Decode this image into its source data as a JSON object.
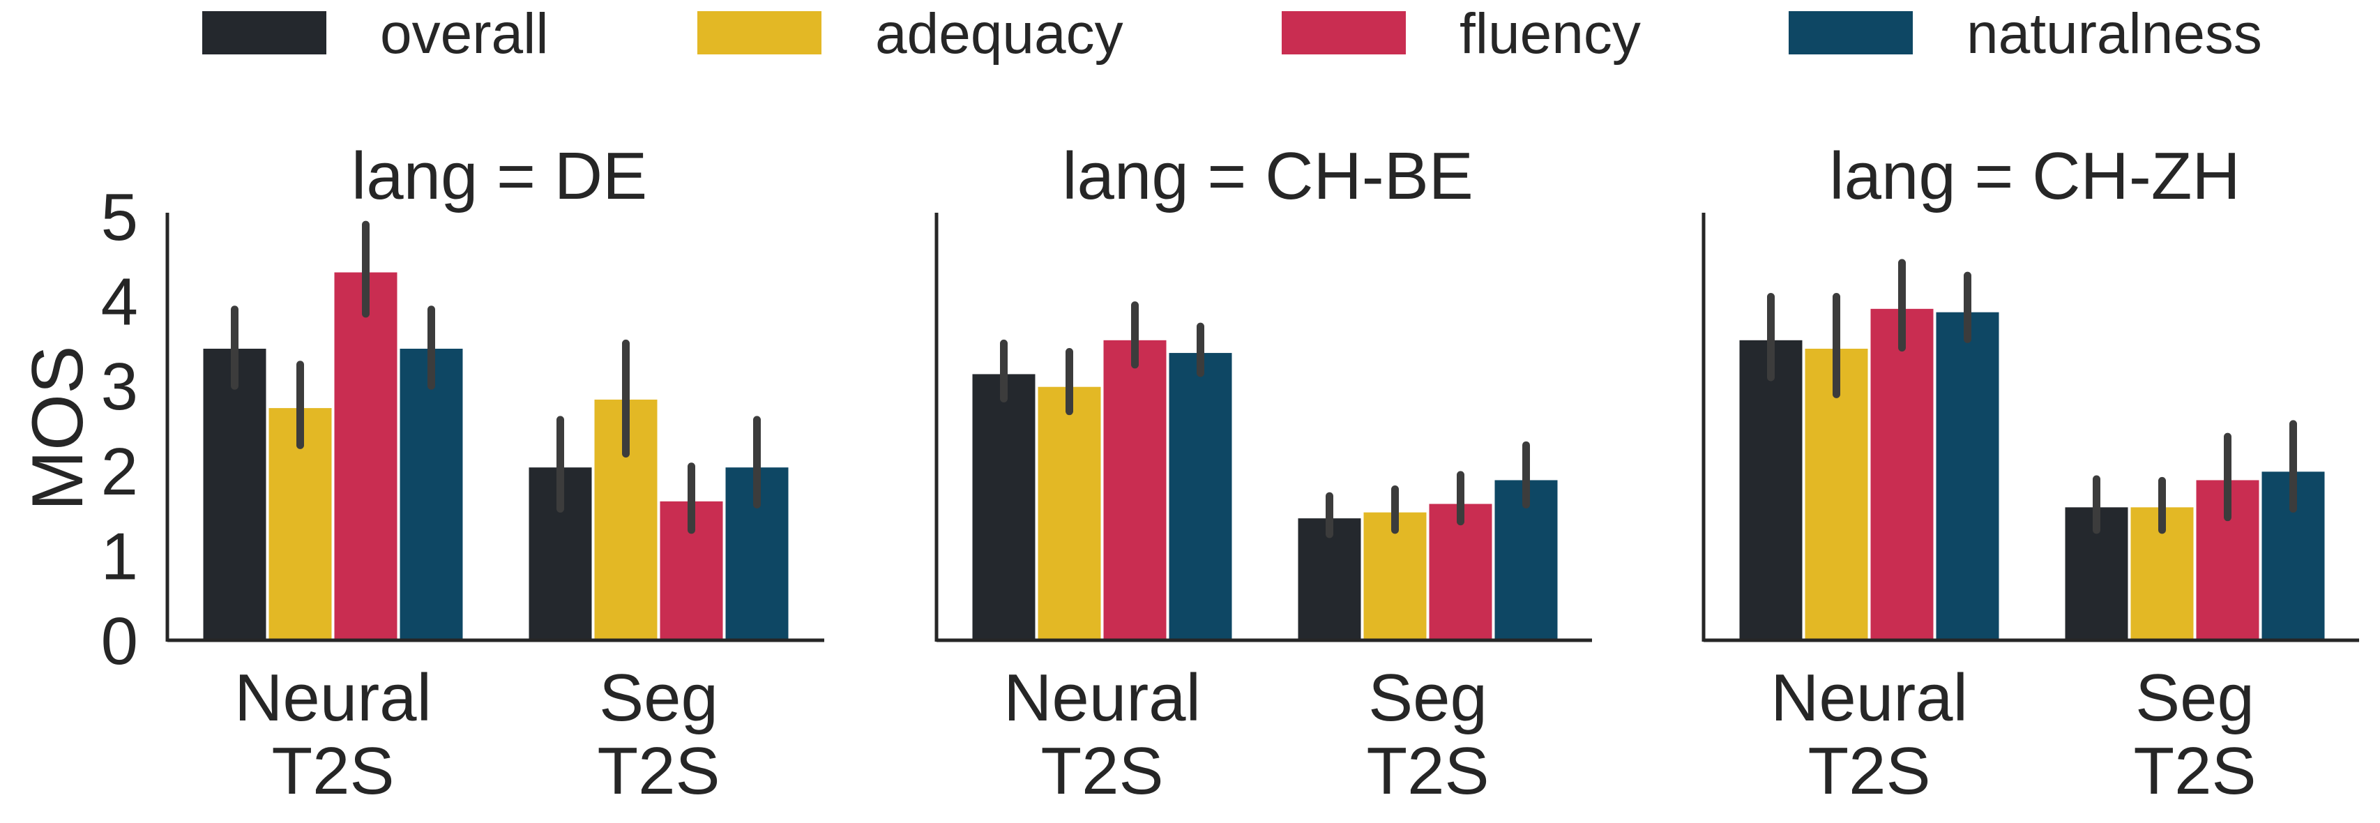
{
  "chart_data": {
    "type": "bar",
    "ylabel": "MOS",
    "ylim": [
      0,
      5
    ],
    "yticks": [
      0,
      1,
      2,
      3,
      4,
      5
    ],
    "categories": [
      "Neural\nT2S",
      "Seg\nT2S"
    ],
    "legend": {
      "placement": "top",
      "entries": [
        {
          "name": "overall",
          "color": "#24282d"
        },
        {
          "name": "adequacy",
          "color": "#e3b825"
        },
        {
          "name": "fluency",
          "color": "#c92d51"
        },
        {
          "name": "naturalness",
          "color": "#0e4764"
        }
      ]
    },
    "panels": [
      {
        "title": "lang = DE",
        "series": [
          {
            "name": "overall",
            "values": [
              3.45,
              2.05
            ],
            "err_low": [
              3.0,
              1.55
            ],
            "err_high": [
              3.9,
              2.6
            ]
          },
          {
            "name": "adequacy",
            "values": [
              2.75,
              2.85
            ],
            "err_low": [
              2.3,
              2.2
            ],
            "err_high": [
              3.25,
              3.5
            ]
          },
          {
            "name": "fluency",
            "values": [
              4.35,
              1.65
            ],
            "err_low": [
              3.85,
              1.3
            ],
            "err_high": [
              4.9,
              2.05
            ]
          },
          {
            "name": "naturalness",
            "values": [
              3.45,
              2.05
            ],
            "err_low": [
              3.0,
              1.6
            ],
            "err_high": [
              3.9,
              2.6
            ]
          }
        ]
      },
      {
        "title": "lang = CH-BE",
        "series": [
          {
            "name": "overall",
            "values": [
              3.15,
              1.45
            ],
            "err_low": [
              2.85,
              1.25
            ],
            "err_high": [
              3.5,
              1.7
            ]
          },
          {
            "name": "adequacy",
            "values": [
              3.0,
              1.52
            ],
            "err_low": [
              2.7,
              1.3
            ],
            "err_high": [
              3.4,
              1.78
            ]
          },
          {
            "name": "fluency",
            "values": [
              3.55,
              1.62
            ],
            "err_low": [
              3.25,
              1.4
            ],
            "err_high": [
              3.95,
              1.95
            ]
          },
          {
            "name": "naturalness",
            "values": [
              3.4,
              1.9
            ],
            "err_low": [
              3.15,
              1.6
            ],
            "err_high": [
              3.7,
              2.3
            ]
          }
        ]
      },
      {
        "title": "lang = CH-ZH",
        "series": [
          {
            "name": "overall",
            "values": [
              3.55,
              1.58
            ],
            "err_low": [
              3.1,
              1.3
            ],
            "err_high": [
              4.05,
              1.9
            ]
          },
          {
            "name": "adequacy",
            "values": [
              3.45,
              1.58
            ],
            "err_low": [
              2.9,
              1.3
            ],
            "err_high": [
              4.05,
              1.88
            ]
          },
          {
            "name": "fluency",
            "values": [
              3.92,
              1.9
            ],
            "err_low": [
              3.45,
              1.45
            ],
            "err_high": [
              4.45,
              2.4
            ]
          },
          {
            "name": "naturalness",
            "values": [
              3.88,
              2.0
            ],
            "err_low": [
              3.55,
              1.55
            ],
            "err_high": [
              4.3,
              2.55
            ]
          }
        ]
      }
    ]
  }
}
